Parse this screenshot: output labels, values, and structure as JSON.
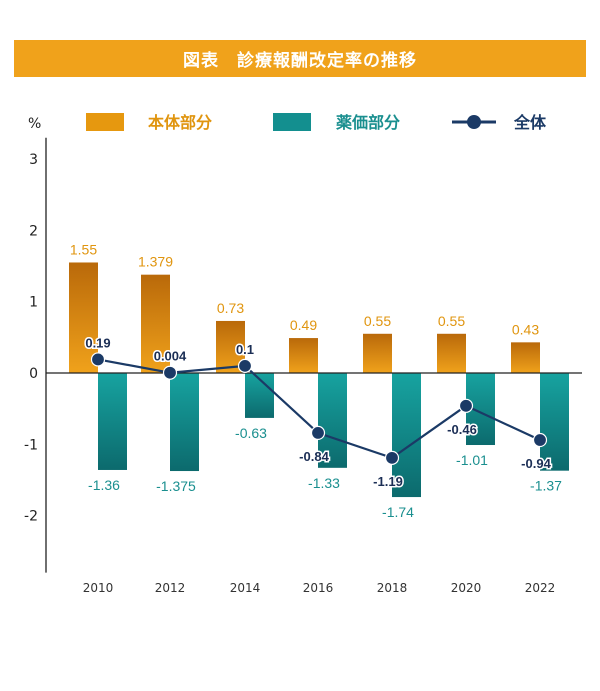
{
  "chart_data": {
    "type": "bar",
    "title": "図表　診療報酬改定率の推移",
    "ylabel": "%",
    "ylim": [
      -2.8,
      3.3
    ],
    "yticks": [
      3,
      2,
      1,
      0,
      -1,
      -2
    ],
    "categories": [
      "2010",
      "2012",
      "2014",
      "2016",
      "2018",
      "2020",
      "2022"
    ],
    "series": [
      {
        "name": "本体部分",
        "type": "bar",
        "color": "#e0950f",
        "values": [
          1.55,
          1.379,
          0.73,
          0.49,
          0.55,
          0.55,
          0.43
        ],
        "labels": [
          "1.55",
          "1.379",
          "0.73",
          "0.49",
          "0.55",
          "0.55",
          "0.43"
        ]
      },
      {
        "name": "薬価部分",
        "type": "bar",
        "color": "#138f8f",
        "values": [
          -1.36,
          -1.375,
          -0.63,
          -1.33,
          -1.74,
          -1.01,
          -1.37
        ],
        "labels": [
          "-1.36",
          "-1.375",
          "-0.63",
          "-1.33",
          "-1.74",
          "-1.01",
          "-1.37"
        ]
      },
      {
        "name": "全体",
        "type": "line",
        "color": "#1b3a66",
        "values": [
          0.19,
          0.004,
          0.1,
          -0.84,
          -1.19,
          -0.46,
          -0.94
        ],
        "labels": [
          "0.19",
          "0.004",
          "0.1",
          "-0.84",
          "-1.19",
          "-0.46",
          "-0.94"
        ]
      }
    ],
    "legend": "top",
    "grid": false
  }
}
